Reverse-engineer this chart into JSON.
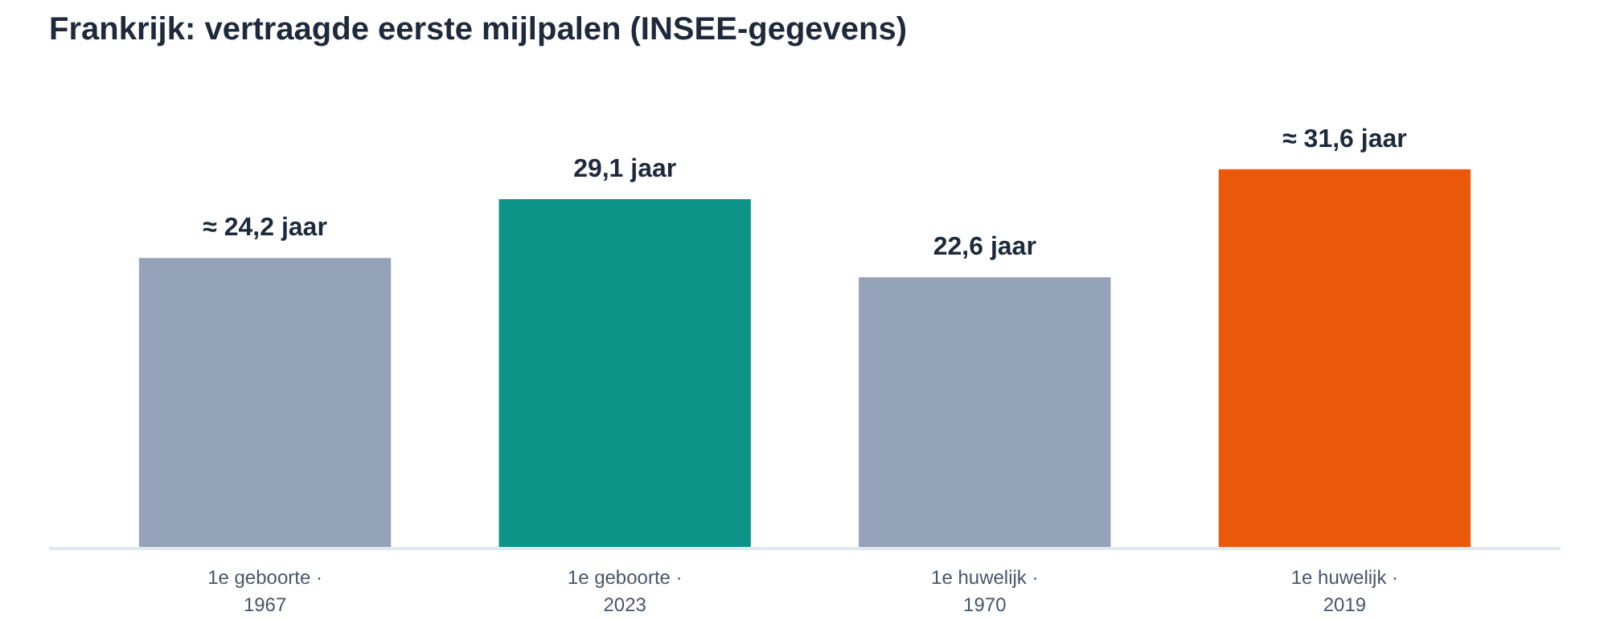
{
  "chart_data": {
    "type": "bar",
    "title": "Frankrijk: vertraagde eerste mijlpalen (INSEE-gegevens)",
    "categories": [
      "1e geboorte ·\n1967",
      "1e geboorte ·\n2023",
      "1e huwelijk ·\n1970",
      "1e huwelijk ·\n2019"
    ],
    "values": [
      24.2,
      29.1,
      22.6,
      31.6
    ],
    "colors": [
      "#94a3b8",
      "#0d9488",
      "#94a3b8",
      "#ea580c"
    ],
    "value_labels": [
      "≈ 24,2 jaar",
      "29,1 jaar",
      "22,6 jaar",
      "≈ 31,6 jaar"
    ],
    "grid": false,
    "tick_labels": "x"
  }
}
